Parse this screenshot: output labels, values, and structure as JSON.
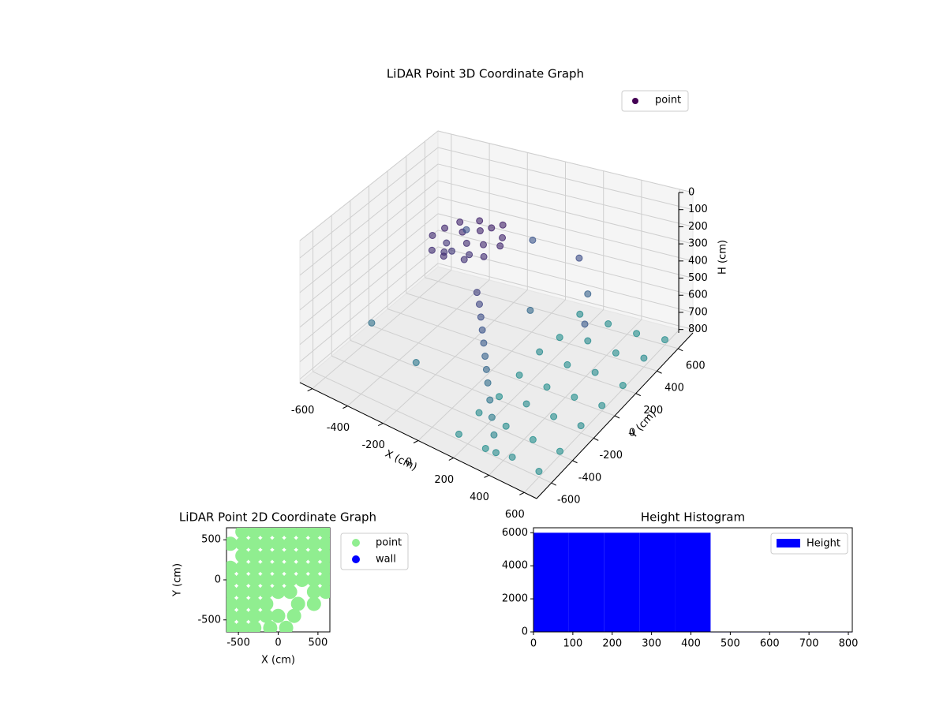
{
  "chart_data": [
    {
      "type": "scatter3d",
      "title": "LiDAR Point 3D Coordinate Graph",
      "xlabel": "X (cm)",
      "ylabel": "Y (cm)",
      "zlabel": "H (cm)",
      "xlim": [
        -670,
        670
      ],
      "ylim": [
        -740,
        740
      ],
      "zlim": [
        0,
        820
      ],
      "z_inverted": true,
      "xticks": [
        -600,
        -400,
        -200,
        0,
        200,
        400,
        600
      ],
      "yticks": [
        -600,
        -400,
        -200,
        0,
        200,
        400,
        600
      ],
      "zticks": [
        0,
        100,
        200,
        300,
        400,
        500,
        600,
        700,
        800
      ],
      "colormap": "viridis",
      "legend": "upper right",
      "series": [
        {
          "name": "point",
          "color": "#440154",
          "x": [
            -350,
            -320,
            -300,
            -280,
            -260,
            -240,
            -220,
            -200,
            -180,
            -160,
            -140,
            -120,
            -100,
            -80,
            -60,
            -40,
            -20,
            -300,
            -250,
            -150,
            0,
            30,
            60,
            90,
            120,
            150,
            180,
            210,
            250,
            290,
            330,
            370,
            -400,
            -100,
            200,
            -500,
            100,
            300,
            -200,
            450,
            150,
            150,
            150,
            150,
            150,
            150,
            150,
            300,
            300,
            300,
            300,
            300,
            300,
            300,
            450,
            450,
            450,
            450,
            450,
            450,
            450,
            600,
            600,
            600,
            600,
            600,
            600,
            600
          ],
          "y": [
            50,
            120,
            -50,
            200,
            0,
            150,
            -80,
            250,
            80,
            180,
            -20,
            220,
            100,
            260,
            30,
            180,
            120,
            100,
            60,
            50,
            -150,
            -180,
            -220,
            -260,
            -300,
            -340,
            -380,
            -420,
            -470,
            -520,
            -570,
            -620,
            500,
            600,
            500,
            -300,
            200,
            400,
            -400,
            100,
            -600,
            -400,
            -200,
            0,
            200,
            400,
            600,
            -600,
            -400,
            -200,
            0,
            200,
            400,
            600,
            -600,
            -400,
            -200,
            0,
            200,
            400,
            600,
            -600,
            -400,
            -200,
            0,
            200,
            400,
            600
          ],
          "z": [
            200,
            180,
            220,
            170,
            240,
            190,
            210,
            160,
            200,
            170,
            230,
            160,
            190,
            150,
            210,
            170,
            180,
            250,
            260,
            240,
            300,
            340,
            380,
            420,
            460,
            500,
            540,
            580,
            630,
            680,
            730,
            780,
            400,
            420,
            380,
            600,
            550,
            500,
            650,
            450,
            790,
            780,
            800,
            790,
            770,
            800,
            780,
            800,
            790,
            780,
            800,
            790,
            770,
            790,
            780,
            800,
            790,
            800,
            780,
            790,
            800,
            790,
            800,
            780,
            790,
            800,
            770,
            790
          ]
        }
      ]
    },
    {
      "type": "scatter",
      "title": "LiDAR Point 2D Coordinate Graph",
      "xlabel": "X (cm)",
      "ylabel": "Y (cm)",
      "xlim": [
        -650,
        650
      ],
      "ylim": [
        -650,
        650
      ],
      "xticks": [
        -500,
        0,
        500
      ],
      "yticks": [
        -500,
        0,
        500
      ],
      "legend": "outside right",
      "series": [
        {
          "name": "point",
          "color": "#90ee90",
          "x": [
            -450,
            -300,
            -150,
            0,
            150,
            300,
            450,
            600,
            -600,
            -450,
            -300,
            -150,
            0,
            150,
            300,
            450,
            600,
            -450,
            -300,
            -150,
            0,
            150,
            300,
            450,
            600,
            -600,
            -450,
            -300,
            -150,
            0,
            150,
            300,
            450,
            600,
            -600,
            -450,
            -300,
            -150,
            0,
            150,
            300,
            450,
            600,
            -600,
            -450,
            -300,
            -150,
            0,
            150,
            450,
            600,
            -600,
            -450,
            -300,
            -150,
            250,
            450,
            -600,
            -450,
            -300,
            -150,
            0,
            200,
            -600,
            -450,
            -300,
            -100,
            100
          ],
          "y": [
            600,
            600,
            600,
            600,
            600,
            600,
            600,
            600,
            450,
            450,
            450,
            450,
            450,
            450,
            450,
            450,
            450,
            300,
            300,
            300,
            300,
            300,
            300,
            300,
            300,
            150,
            150,
            150,
            150,
            150,
            150,
            150,
            150,
            150,
            0,
            0,
            0,
            0,
            0,
            0,
            0,
            0,
            0,
            -150,
            -150,
            -150,
            -150,
            -150,
            -150,
            -150,
            -150,
            -300,
            -300,
            -300,
            -300,
            -300,
            -300,
            -450,
            -450,
            -450,
            -450,
            -450,
            -450,
            -600,
            -600,
            -600,
            -600,
            -600
          ]
        },
        {
          "name": "wall",
          "color": "#0000ff",
          "x": [],
          "y": []
        }
      ]
    },
    {
      "type": "histogram",
      "title": "Height Histogram",
      "xlim": [
        0,
        810
      ],
      "ylim": [
        0,
        6300
      ],
      "xticks": [
        0,
        100,
        200,
        300,
        400,
        500,
        600,
        700,
        800
      ],
      "yticks": [
        0,
        2000,
        4000,
        6000
      ],
      "legend": "upper right",
      "series": [
        {
          "name": "Height",
          "color": "#0000ff",
          "bins": [
            0,
            90,
            180,
            270,
            360,
            450,
            540,
            630,
            720,
            810
          ],
          "values": [
            6000,
            6000,
            6000,
            6000,
            6000,
            20,
            20,
            20,
            20
          ]
        }
      ]
    }
  ]
}
